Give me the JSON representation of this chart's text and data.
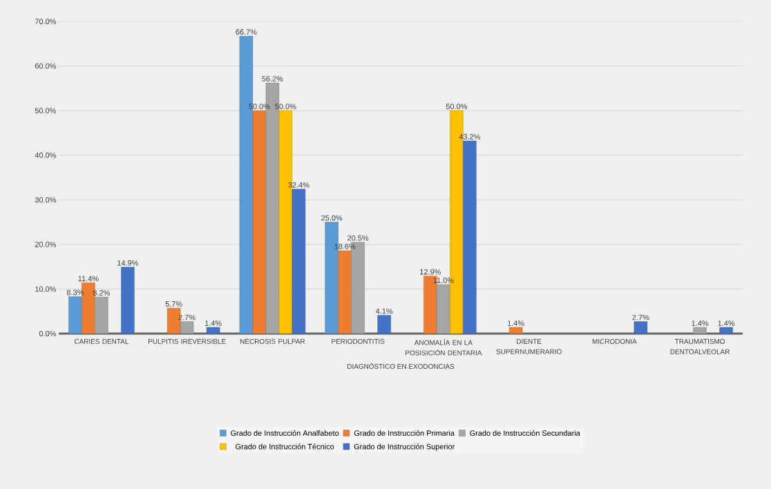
{
  "chart_data": {
    "type": "bar",
    "xlabel": "DIAGNÓSTICO EN EXODONCIAS",
    "categories": [
      "CARIES DENTAL",
      "PULPITIS IREVERSIBLE",
      "NECROSIS PULPAR",
      "PERIODONTITIS",
      "ANOMALÍA EN LA POSISICIÓN DENTARIA",
      "DIENTE SUPERNUMERARIO",
      "MICRODONIA",
      "TRAUMATISMO DENTOALVEOLAR"
    ],
    "series": [
      {
        "name": "Grado de Instrucción Analfabeto",
        "color": "#5b9bd5",
        "values": [
          8.3,
          null,
          66.7,
          25.0,
          null,
          null,
          null,
          null
        ],
        "value_labels": [
          "8.3%",
          null,
          "66.7%",
          "25.0%",
          null,
          null,
          null,
          null
        ]
      },
      {
        "name": "Grado de Instrucción Primaria",
        "color": "#ed7d31",
        "values": [
          11.4,
          5.7,
          50.0,
          18.6,
          12.9,
          1.4,
          null,
          null
        ],
        "value_labels": [
          "11.4%",
          "5.7%",
          "50.0%",
          "18.6%",
          "12.9%",
          "1.4%",
          null,
          null
        ]
      },
      {
        "name": "Grado de Instrucción Secundaria",
        "color": "#a5a5a5",
        "values": [
          8.2,
          2.7,
          56.2,
          20.5,
          11.0,
          null,
          null,
          1.4
        ],
        "value_labels": [
          "8.2%",
          "2.7%",
          "56.2%",
          "20.5%",
          "11.0%",
          null,
          null,
          "1.4%"
        ]
      },
      {
        "name": "Grado de Instrucción Técnico",
        "color": "#ffc000",
        "values": [
          null,
          null,
          50.0,
          null,
          50.0,
          null,
          null,
          null
        ],
        "value_labels": [
          null,
          null,
          "50.0%",
          null,
          "50.0%",
          null,
          null,
          null
        ]
      },
      {
        "name": "Grado de Instrucción Superior",
        "color": "#4472c4",
        "values": [
          14.9,
          1.4,
          32.4,
          4.1,
          43.2,
          null,
          2.7,
          1.4
        ],
        "value_labels": [
          "14.9%",
          "1.4%",
          "32.4%",
          "4.1%",
          "43.2%",
          null,
          "2.7%",
          "1.4%"
        ]
      }
    ],
    "ylim": [
      0,
      70
    ],
    "yticks": [
      {
        "value": 0,
        "label": "0.0%"
      },
      {
        "value": 10,
        "label": "10.0%"
      },
      {
        "value": 20,
        "label": "20.0%"
      },
      {
        "value": 30,
        "label": "30.0%"
      },
      {
        "value": 40,
        "label": "40.0%"
      },
      {
        "value": 50,
        "label": "50.0%"
      },
      {
        "value": 60,
        "label": "60.0%"
      },
      {
        "value": 70,
        "label": "70.0%"
      }
    ],
    "grid": "y",
    "legend": "bottom"
  }
}
